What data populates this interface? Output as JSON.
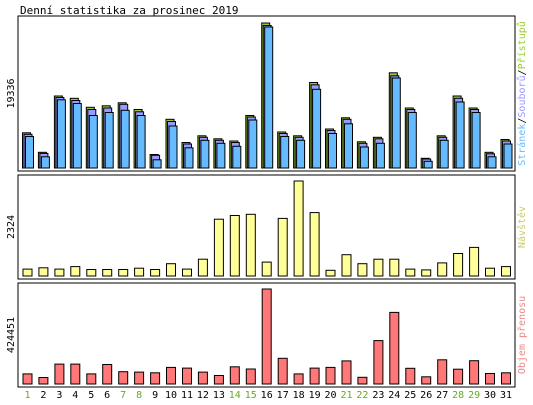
{
  "title": "Denní statistika za prosinec 2019",
  "colors": {
    "pristupu": "#99cc33",
    "souboru": "#9999ff",
    "stranek": "#66bbff",
    "navstev": "#ffff99",
    "objem": "#ff7777",
    "weekend_day": "#66aa22",
    "weekday": "#000000",
    "frame": "#000000"
  },
  "chart_data": {
    "type": "bar",
    "categories": [
      "1",
      "2",
      "3",
      "4",
      "5",
      "6",
      "7",
      "8",
      "9",
      "10",
      "11",
      "12",
      "13",
      "14",
      "15",
      "16",
      "17",
      "18",
      "19",
      "20",
      "21",
      "22",
      "23",
      "24",
      "25",
      "26",
      "27",
      "28",
      "29",
      "30",
      "31"
    ],
    "weekend_days": [
      "1",
      "7",
      "8",
      "14",
      "15",
      "21",
      "22",
      "28",
      "29"
    ],
    "panels": [
      {
        "max_label": "19336",
        "ymax": 19336,
        "legend": [
          "Stránek",
          "Souborů",
          "Přístupů"
        ],
        "series": [
          {
            "name": "Přístupů",
            "color_key": "pristupu",
            "values": [
              4700,
              2100,
              9600,
              9300,
              8100,
              8300,
              8700,
              7800,
              1800,
              6500,
              3400,
              4300,
              3900,
              3600,
              7000,
              19336,
              4800,
              4300,
              11400,
              5200,
              6700,
              3500,
              4100,
              12700,
              8000,
              1300,
              4300,
              9600,
              8000,
              2100,
              3800
            ]
          },
          {
            "name": "Souborů",
            "color_key": "souboru",
            "values": [
              4500,
              1950,
              9400,
              9000,
              7800,
              8000,
              8500,
              7500,
              1700,
              6200,
              3200,
              4100,
              3700,
              3400,
              6800,
              19000,
              4600,
              4100,
              11100,
              5000,
              6500,
              3300,
              3900,
              12300,
              7800,
              1200,
              4100,
              9300,
              7800,
              1900,
              3600
            ]
          },
          {
            "name": "Stránek",
            "color_key": "stranek",
            "values": [
              4200,
              1500,
              9100,
              8600,
              7000,
              7400,
              7700,
              7000,
              1100,
              5600,
              2700,
              3700,
              3300,
              2900,
              6400,
              18800,
              4200,
              3700,
              10500,
              4600,
              5900,
              2800,
              3300,
              12000,
              7400,
              900,
              3700,
              8800,
              7400,
              1500,
              3200
            ]
          }
        ]
      },
      {
        "max_label": "2324",
        "ymax": 2324,
        "legend": [
          "Návštěv"
        ],
        "series": [
          {
            "name": "Návštěv",
            "color_key": "navstev",
            "values": [
              170,
              200,
              170,
              230,
              160,
              160,
              160,
              190,
              160,
              300,
              170,
              410,
              1390,
              1480,
              1510,
              340,
              1410,
              2324,
              1550,
              140,
              520,
              300,
              410,
              410,
              170,
              150,
              320,
              550,
              700,
              190,
              230
            ]
          }
        ]
      },
      {
        "max_label": "424451",
        "ymax": 424451,
        "legend": [
          "Objem přenosu"
        ],
        "series": [
          {
            "name": "Objem přenosu",
            "color_key": "objem",
            "values": [
              45000,
              29000,
              89000,
              89000,
              45000,
              87000,
              55000,
              53000,
              50000,
              74000,
              71000,
              53000,
              38000,
              77000,
              67000,
              424451,
              115000,
              45000,
              71000,
              74000,
              103000,
              30000,
              194000,
              320000,
              70000,
              32000,
              108000,
              66000,
              104000,
              47000,
              50000
            ]
          }
        ]
      }
    ]
  }
}
